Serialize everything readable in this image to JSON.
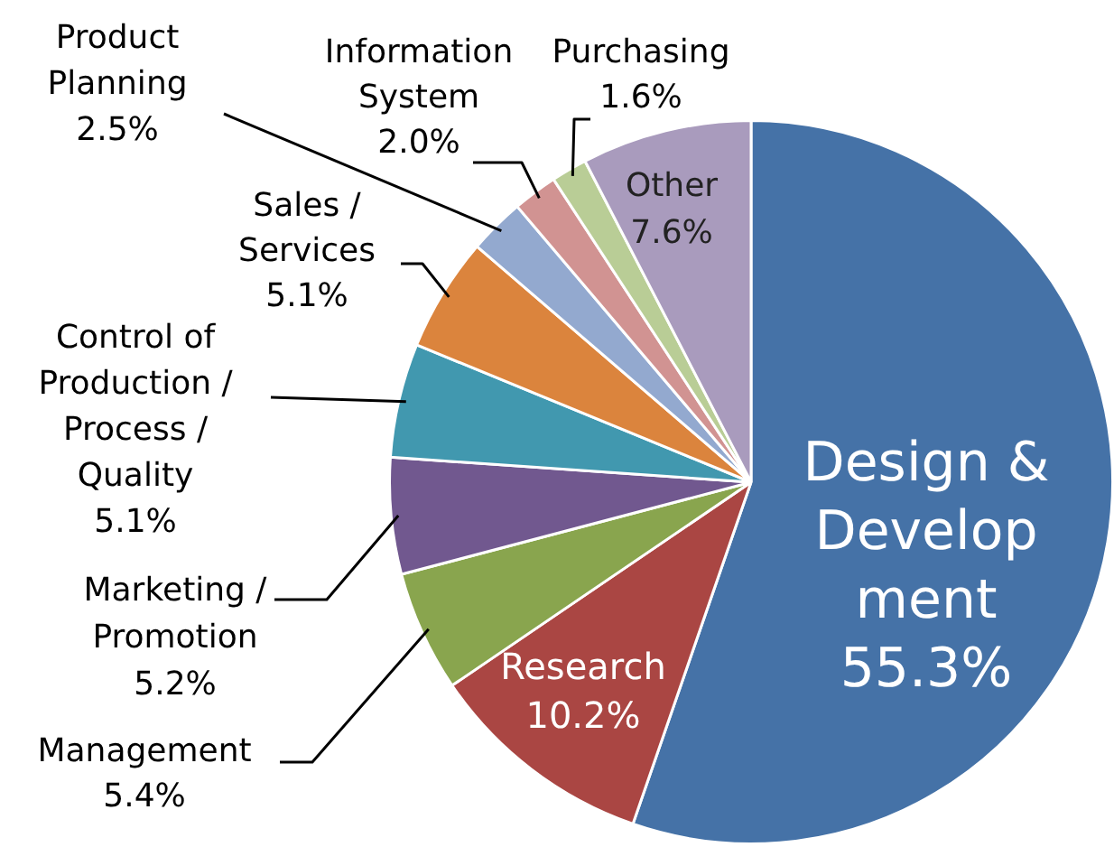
{
  "chart_data": {
    "type": "pie",
    "categories": [
      "Design &\nDevelop\nment",
      "Research",
      "Management",
      "Marketing /\nPromotion",
      "Control of\nProduction /\nProcess /\nQuality",
      "Sales /\nServices",
      "Product\nPlanning",
      "Information\nSystem",
      "Purchasing",
      "Other"
    ],
    "values": [
      55.3,
      10.2,
      5.4,
      5.2,
      5.1,
      5.1,
      2.5,
      2.0,
      1.6,
      7.6
    ],
    "value_labels": [
      "55.3%",
      "10.2%",
      "5.4%",
      "5.2%",
      "5.1%",
      "5.1%",
      "2.5%",
      "2.0%",
      "1.6%",
      "7.6%"
    ],
    "colors": [
      "#4572a7",
      "#aa4643",
      "#89a54e",
      "#71588f",
      "#4198af",
      "#db843d",
      "#93a9cf",
      "#d19392",
      "#b9cd96",
      "#a99bbd"
    ],
    "legend": false
  }
}
